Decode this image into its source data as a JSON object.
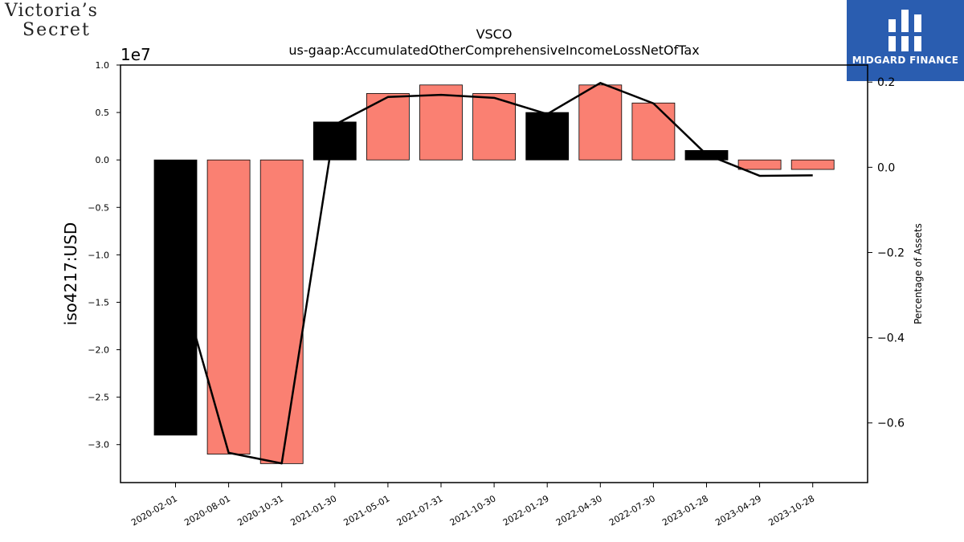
{
  "logos": {
    "left_line1": "Victoria’s",
    "left_line2": "Secret",
    "right_brand": "MIDGARD FINANCE"
  },
  "chart_data": {
    "type": "bar",
    "title": "VSCO",
    "subtitle": "us-gaap:AccumulatedOtherComprehensiveIncomeLossNetOfTax",
    "ylabel": "iso4217:USD",
    "y2label": "Percentage of Assets",
    "offset_label": "1e7",
    "categories": [
      "2020-02-01",
      "2020-08-01",
      "2020-10-31",
      "2021-01-30",
      "2021-05-01",
      "2021-07-31",
      "2021-10-30",
      "2022-01-29",
      "2022-04-30",
      "2022-07-30",
      "2023-01-28",
      "2023-04-29",
      "2023-10-28"
    ],
    "values": [
      -29000000,
      -31000000,
      -32000000,
      4000000,
      7000000,
      7900000,
      7000000,
      5000000,
      7900000,
      6000000,
      1000000,
      -1000000,
      -1000000
    ],
    "bar_colors": [
      "#000000",
      "#fa8072",
      "#fa8072",
      "#000000",
      "#fa8072",
      "#fa8072",
      "#fa8072",
      "#000000",
      "#fa8072",
      "#fa8072",
      "#000000",
      "#fa8072",
      "#fa8072"
    ],
    "pct_of_assets": [
      -0.23,
      -0.67,
      -0.695,
      0.1,
      0.165,
      0.17,
      0.163,
      0.125,
      0.198,
      0.15,
      0.03,
      -0.02,
      -0.019
    ],
    "ylim": [
      -34000000,
      10000000
    ],
    "y2lim": [
      -0.74,
      0.24
    ],
    "yticks": [
      1.0,
      0.5,
      0.0,
      -0.5,
      -1.0,
      -1.5,
      -2.0,
      -2.5,
      -3.0
    ],
    "ytick_labels": [
      "1.0",
      "0.5",
      "0.0",
      "−0.5",
      "−1.0",
      "−1.5",
      "−2.0",
      "−2.5",
      "−3.0"
    ],
    "y2ticks": [
      0.2,
      0.0,
      -0.2,
      -0.4,
      -0.6
    ],
    "y2tick_labels": [
      "0.2",
      "0.0",
      "−0.2",
      "−0.4",
      "−0.6"
    ],
    "line_color": "#000000",
    "grid": false
  }
}
